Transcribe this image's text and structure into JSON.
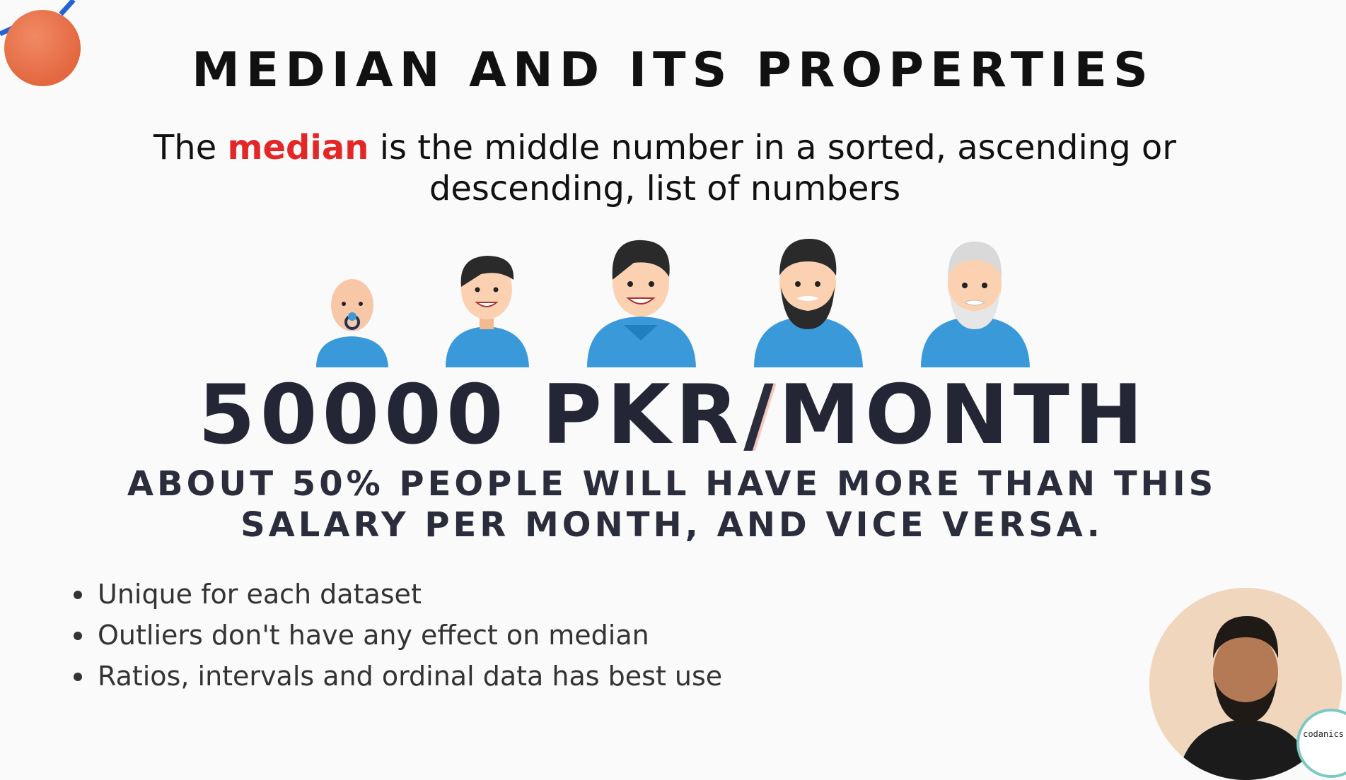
{
  "title": "MEDIAN AND ITS PROPERTIES",
  "definition": {
    "prefix": "The ",
    "keyword": "median",
    "line1_rest": " is the middle number in a sorted, ascending or",
    "line2": "descending, list of numbers"
  },
  "salary": {
    "amount": "50000 PKR",
    "slash": "/",
    "unit": "MONTH"
  },
  "note": {
    "line1": "ABOUT 50% PEOPLE WILL HAVE MORE THAN THIS",
    "line2": "SALARY PER MONTH, AND VICE VERSA."
  },
  "bullets": [
    "Unique for each dataset",
    "Outliers don't have any effect on median",
    "Ratios, intervals and ordinal data has best use"
  ],
  "people_icons": [
    "baby-icon",
    "young-man-icon",
    "man-icon",
    "bearded-man-icon",
    "old-man-icon"
  ],
  "logo": {
    "text": "codanics"
  },
  "colors": {
    "keyword": "#e32727",
    "shirt": "#3a9ad9",
    "deco_ball": "#e3673f",
    "text_dark": "#242636"
  }
}
